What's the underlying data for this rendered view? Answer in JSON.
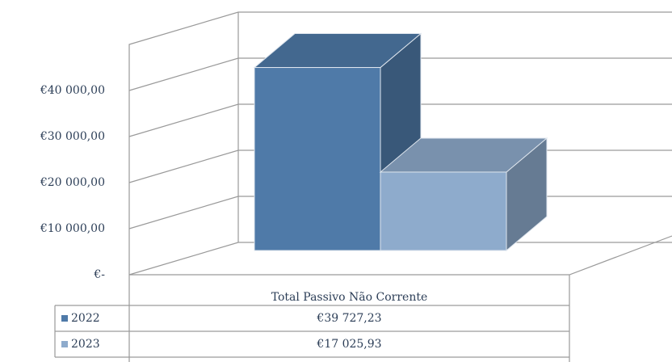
{
  "chart_data": {
    "type": "bar3d",
    "categories": [
      "Total Passivo  Não Corrente"
    ],
    "series": [
      {
        "name": "2022",
        "color": "#4f7aa8",
        "values": [
          39727.23
        ],
        "value_labels": [
          "€39 727,23"
        ]
      },
      {
        "name": "2023",
        "color": "#8eabcc",
        "values": [
          17025.93
        ],
        "value_labels": [
          "€17 025,93"
        ]
      }
    ],
    "ylim": [
      0,
      50000
    ],
    "yticks": [
      {
        "value": 0,
        "label": "€-"
      },
      {
        "value": 10000,
        "label": "€10 000,00"
      },
      {
        "value": 20000,
        "label": "€20 000,00"
      },
      {
        "value": 30000,
        "label": "€30 000,00"
      },
      {
        "value": 40000,
        "label": "€40 000,00"
      }
    ],
    "grid": true
  }
}
